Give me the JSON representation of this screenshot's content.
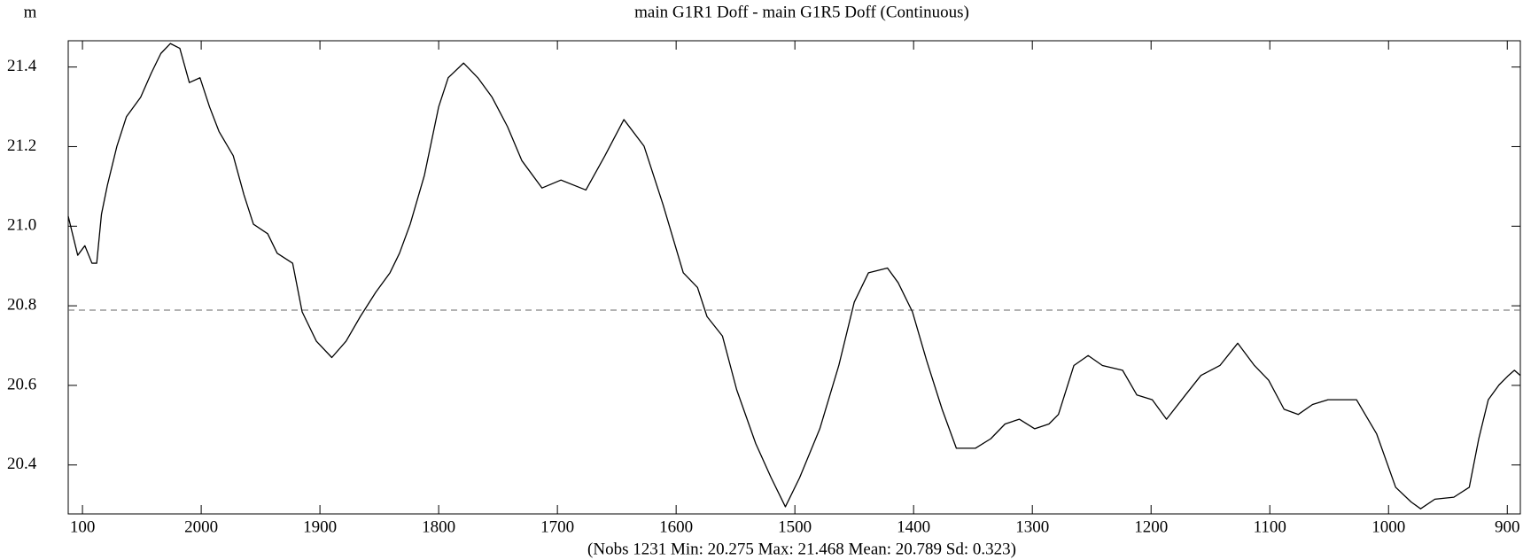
{
  "chart_data": {
    "type": "line",
    "corner_label": "m",
    "title": "main G1R1 Doff - main G1R5 Doff (Continuous)",
    "footer": "(Nobs 1231 Min: 20.275 Max: 21.468 Mean: 20.789 Sd: 0.323)",
    "color": "#000000",
    "mean_line": 20.789,
    "xlim": [
      2112,
      889
    ],
    "ylim": [
      20.277,
      21.466
    ],
    "xticks": [
      {
        "value": 2100,
        "label": "100"
      },
      2000,
      1900,
      1800,
      1700,
      1600,
      1500,
      1400,
      1300,
      1200,
      1100,
      1000,
      900
    ],
    "yticks": [
      20.4,
      20.6,
      20.8,
      {
        "value": 21,
        "label": "21.0"
      },
      21.2,
      21.4
    ],
    "x": [
      2112,
      2104,
      2098,
      2092,
      2088,
      2084,
      2079,
      2071,
      2063,
      2051,
      2042,
      2034,
      2026,
      2018,
      2010,
      2001,
      1993,
      1985,
      1973,
      1964,
      1956,
      1944,
      1936,
      1923,
      1915,
      1903,
      1890,
      1878,
      1866,
      1853,
      1841,
      1833,
      1824,
      1812,
      1800,
      1792,
      1779,
      1767,
      1755,
      1742,
      1730,
      1713,
      1697,
      1676,
      1660,
      1644,
      1627,
      1611,
      1594,
      1582,
      1574,
      1561,
      1549,
      1533,
      1520,
      1508,
      1496,
      1479,
      1463,
      1450,
      1438,
      1422,
      1413,
      1401,
      1389,
      1376,
      1364,
      1348,
      1335,
      1323,
      1311,
      1298,
      1286,
      1278,
      1265,
      1253,
      1241,
      1224,
      1212,
      1199,
      1187,
      1171,
      1158,
      1142,
      1127,
      1113,
      1101,
      1088,
      1076,
      1064,
      1051,
      1039,
      1027,
      1010,
      994,
      981,
      973,
      961,
      945,
      932,
      924,
      916,
      907,
      899,
      894,
      889
    ],
    "values": [
      21.025,
      20.927,
      20.951,
      20.907,
      20.907,
      21.03,
      21.103,
      21.201,
      21.275,
      21.324,
      21.385,
      21.434,
      21.459,
      21.447,
      21.361,
      21.373,
      21.3,
      21.238,
      21.177,
      21.079,
      21.005,
      20.981,
      20.932,
      20.907,
      20.785,
      20.711,
      20.67,
      20.711,
      20.773,
      20.834,
      20.883,
      20.932,
      21.005,
      21.128,
      21.3,
      21.373,
      21.41,
      21.373,
      21.324,
      21.25,
      21.165,
      21.096,
      21.116,
      21.091,
      21.177,
      21.268,
      21.201,
      21.054,
      20.883,
      20.846,
      20.773,
      20.724,
      20.589,
      20.454,
      20.368,
      20.295,
      20.368,
      20.491,
      20.65,
      20.809,
      20.883,
      20.895,
      20.858,
      20.785,
      20.662,
      20.54,
      20.442,
      20.442,
      20.466,
      20.503,
      20.515,
      20.491,
      20.503,
      20.527,
      20.65,
      20.675,
      20.65,
      20.638,
      20.576,
      20.564,
      20.515,
      20.576,
      20.625,
      20.65,
      20.706,
      20.65,
      20.613,
      20.54,
      20.527,
      20.552,
      20.564,
      20.564,
      20.564,
      20.478,
      20.344,
      20.307,
      20.29,
      20.314,
      20.319,
      20.344,
      20.466,
      20.564,
      20.601,
      20.625,
      20.638,
      20.625
    ]
  }
}
